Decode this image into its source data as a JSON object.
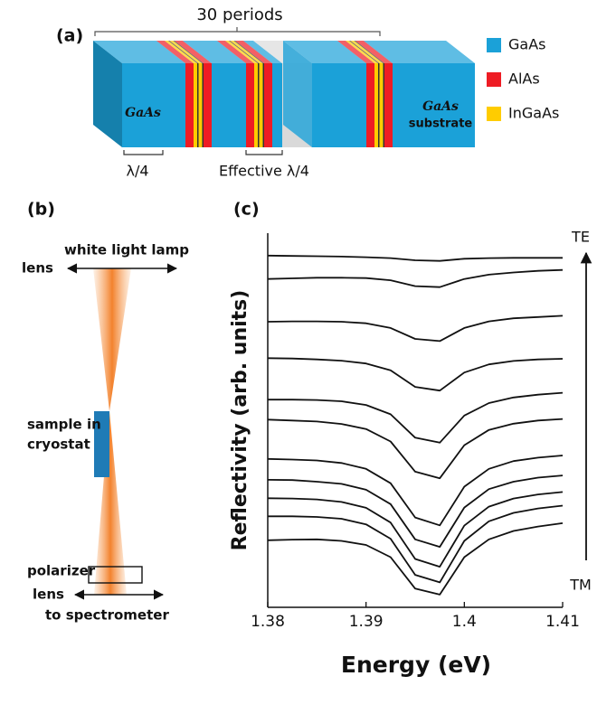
{
  "panel_a": {
    "label": "(a)",
    "periods": "30 periods",
    "layer_material": "GaAs",
    "substrate_material": "GaAs",
    "substrate": "substrate",
    "quarter_wave": "λ/4",
    "effective_quarter_wave": "Effective λ/4",
    "legend": [
      {
        "name": "GaAs",
        "color": "#1ba1d8"
      },
      {
        "name": "AlAs",
        "color": "#ee1c24"
      },
      {
        "name": "InGaAs",
        "color": "#ffcc00"
      }
    ]
  },
  "panel_b": {
    "label": "(b)",
    "lamp": "white light lamp",
    "lens_top": "lens",
    "sample": [
      "sample in",
      "cryostat"
    ],
    "polarizer": "polarizer",
    "lens_bottom": "lens",
    "spectrometer": "to spectrometer"
  },
  "chart_data": {
    "type": "line",
    "panel_label": "(c)",
    "xlabel": "Energy (eV)",
    "ylabel": "Reflectivity (arb. units)",
    "xlim": [
      1.38,
      1.41
    ],
    "xticks": [
      1.38,
      1.39,
      1.4,
      1.41
    ],
    "ylim": [
      0,
      12
    ],
    "annotations": {
      "top": "TE",
      "bottom": "TM"
    },
    "x": [
      1.38,
      1.3825,
      1.385,
      1.3875,
      1.39,
      1.3925,
      1.395,
      1.3975,
      1.4,
      1.4025,
      1.405,
      1.4075,
      1.41
    ],
    "series": [
      {
        "color": "#111111",
        "values": [
          11.28,
          11.27,
          11.26,
          11.25,
          11.23,
          11.2,
          11.13,
          11.11,
          11.18,
          11.2,
          11.21,
          11.21,
          11.21
        ]
      },
      {
        "color": "#111111",
        "values": [
          10.53,
          10.55,
          10.57,
          10.57,
          10.56,
          10.49,
          10.3,
          10.27,
          10.53,
          10.67,
          10.74,
          10.79,
          10.82
        ]
      },
      {
        "color": "#111111",
        "values": [
          9.16,
          9.17,
          9.17,
          9.16,
          9.11,
          8.96,
          8.61,
          8.54,
          8.96,
          9.17,
          9.27,
          9.31,
          9.35
        ]
      },
      {
        "color": "#111111",
        "values": [
          7.99,
          7.98,
          7.95,
          7.91,
          7.82,
          7.6,
          7.07,
          6.95,
          7.53,
          7.79,
          7.9,
          7.95,
          7.97
        ]
      },
      {
        "color": "#111111",
        "values": [
          6.66,
          6.66,
          6.65,
          6.61,
          6.49,
          6.19,
          5.44,
          5.28,
          6.15,
          6.55,
          6.73,
          6.82,
          6.88
        ]
      },
      {
        "color": "#111111",
        "values": [
          6.02,
          5.99,
          5.96,
          5.88,
          5.72,
          5.32,
          4.35,
          4.14,
          5.2,
          5.69,
          5.89,
          5.99,
          6.04
        ]
      },
      {
        "color": "#111111",
        "values": [
          4.76,
          4.74,
          4.71,
          4.63,
          4.44,
          3.98,
          2.88,
          2.63,
          3.87,
          4.44,
          4.69,
          4.8,
          4.87
        ]
      },
      {
        "color": "#111111",
        "values": [
          4.09,
          4.08,
          4.03,
          3.96,
          3.77,
          3.31,
          2.18,
          1.94,
          3.2,
          3.79,
          4.03,
          4.16,
          4.23
        ]
      },
      {
        "color": "#111111",
        "values": [
          3.5,
          3.49,
          3.46,
          3.38,
          3.19,
          2.72,
          1.55,
          1.3,
          2.62,
          3.23,
          3.49,
          3.62,
          3.7
        ]
      },
      {
        "color": "#111111",
        "values": [
          2.92,
          2.92,
          2.9,
          2.84,
          2.66,
          2.2,
          1.04,
          0.8,
          2.13,
          2.76,
          3.03,
          3.17,
          3.26
        ]
      },
      {
        "color": "#111111",
        "values": [
          2.15,
          2.17,
          2.18,
          2.13,
          2.0,
          1.61,
          0.6,
          0.41,
          1.61,
          2.18,
          2.45,
          2.59,
          2.7
        ]
      }
    ]
  }
}
